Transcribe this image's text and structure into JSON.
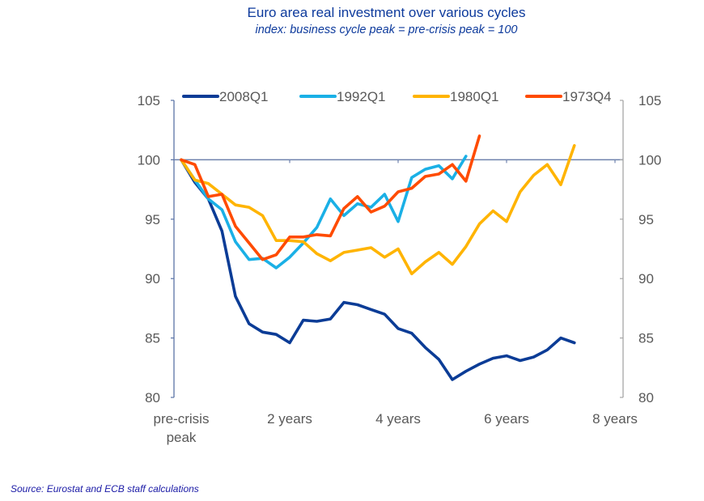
{
  "chart_data": {
    "type": "line",
    "title": "Euro area real investment over various cycles",
    "subtitle": "index: business cycle peak = pre-crisis peak = 100",
    "source": "Source: Eurostat and ECB staff calculations",
    "xlabel": "",
    "ylabel": "",
    "x_unit": "quarters since peak",
    "xlim": [
      0,
      32
    ],
    "ylim": [
      80,
      105
    ],
    "y_ticks": [
      80,
      85,
      90,
      95,
      100,
      105
    ],
    "y_tick_labels": [
      "80",
      "85",
      "90",
      "95",
      "100",
      "105"
    ],
    "x_ticks": [
      0,
      8,
      16,
      24,
      32
    ],
    "x_tick_labels": [
      [
        "pre-crisis",
        "peak"
      ],
      [
        "2 years"
      ],
      [
        "4 years"
      ],
      [
        "6 years"
      ],
      [
        "8 years"
      ]
    ],
    "reference_line": 100,
    "grid": false,
    "legend_position": "top",
    "dual_y_axis": true,
    "series": [
      {
        "name": "2008Q1",
        "color": "#0b3c96",
        "values": [
          100,
          98.1,
          96.7,
          94.0,
          88.5,
          86.2,
          85.5,
          85.3,
          84.6,
          86.5,
          86.4,
          86.6,
          88.0,
          87.8,
          87.4,
          87.0,
          85.8,
          85.4,
          84.2,
          83.2,
          81.5,
          82.2,
          82.8,
          83.3,
          83.5,
          83.1,
          83.4,
          84.0,
          85.0,
          84.6
        ]
      },
      {
        "name": "1992Q1",
        "color": "#1ab0e6",
        "values": [
          100,
          98.3,
          96.7,
          95.8,
          93.1,
          91.6,
          91.7,
          90.9,
          91.8,
          93.0,
          94.3,
          96.7,
          95.3,
          96.3,
          96.0,
          97.1,
          94.8,
          98.5,
          99.2,
          99.5,
          98.4,
          100.3
        ]
      },
      {
        "name": "1980Q1",
        "color": "#ffb400",
        "values": [
          100,
          98.3,
          98.0,
          97.1,
          96.2,
          96.0,
          95.3,
          93.2,
          93.2,
          93.1,
          92.1,
          91.5,
          92.2,
          92.4,
          92.6,
          91.8,
          92.5,
          90.4,
          91.4,
          92.2,
          91.2,
          92.7,
          94.6,
          95.7,
          94.8,
          97.3,
          98.7,
          99.6,
          97.9,
          101.2
        ]
      },
      {
        "name": "1973Q4",
        "color": "#ff4b00",
        "values": [
          100,
          99.6,
          96.9,
          97.1,
          94.4,
          93.0,
          91.6,
          92.0,
          93.5,
          93.5,
          93.7,
          93.6,
          95.9,
          96.9,
          95.6,
          96.1,
          97.3,
          97.6,
          98.6,
          98.8,
          99.6,
          98.2,
          102.0
        ]
      }
    ]
  }
}
